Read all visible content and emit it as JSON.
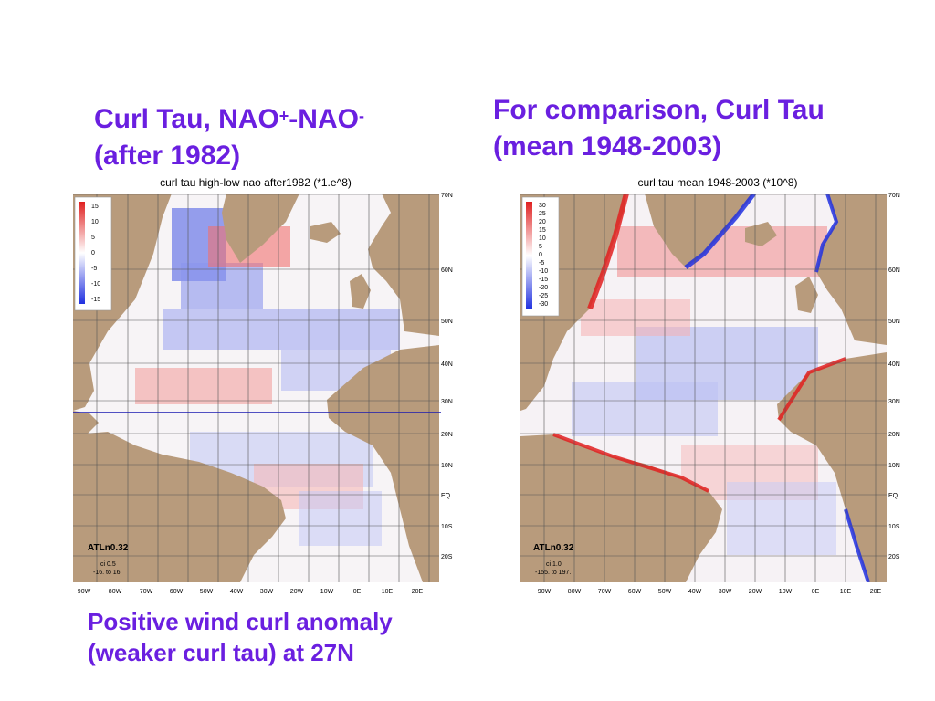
{
  "left_title": {
    "line1_main": "Curl Tau, NAO",
    "sup1": "+",
    "mid": "-NAO",
    "sup2": "-",
    "line2": "(after 1982)"
  },
  "right_title": {
    "line1": "For comparison, Curl Tau",
    "line2": "(mean 1948-2003)"
  },
  "caption": {
    "line1": "Positive wind curl anomaly",
    "line2": "(weaker curl tau) at 27N"
  },
  "left_map": {
    "title": "curl tau high-low nao after1982 (*1.e^8)",
    "legend": [
      "15",
      "10",
      "5",
      "0",
      "-5",
      "-10",
      "-15"
    ],
    "model_label": "ATLn0.32",
    "ci_label": "ci 0.5",
    "range_label": "-16. to 16.",
    "reference_latitude": "27N"
  },
  "right_map": {
    "title": "curl tau mean 1948-2003 (*10^8)",
    "legend": [
      "30",
      "25",
      "20",
      "15",
      "10",
      "5",
      "0",
      "-5",
      "-10",
      "-15",
      "-20",
      "-25",
      "-30"
    ],
    "model_label": "ATLn0.32",
    "ci_label": "ci 1.0",
    "range_label": "-155. to 197."
  },
  "lat_labels": [
    "70N",
    "60N",
    "50N",
    "40N",
    "30N",
    "20N",
    "10N",
    "EQ",
    "10S",
    "20S"
  ],
  "lon_labels": [
    "90W",
    "80W",
    "70W",
    "60W",
    "50W",
    "40W",
    "30W",
    "20W",
    "10W",
    "0E",
    "10E",
    "20E"
  ],
  "colors": {
    "heading": "#6a1fe0",
    "land": "#b89b7c",
    "positive": "#e02020",
    "negative": "#2030e0",
    "line": "#1a1ab0"
  }
}
